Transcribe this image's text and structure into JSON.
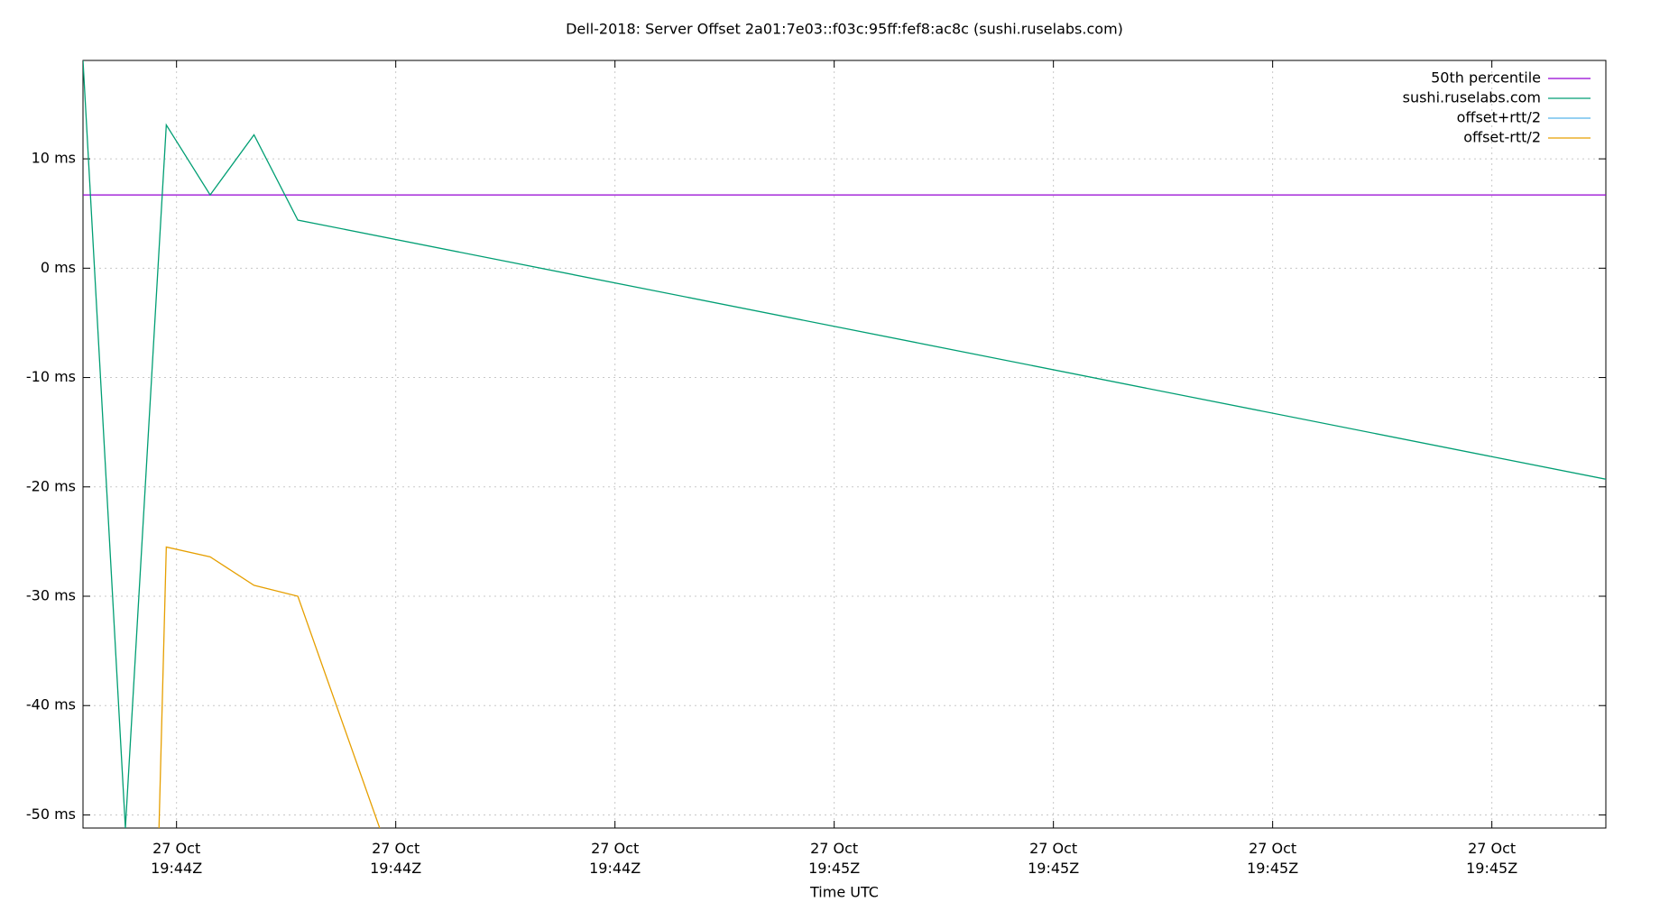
{
  "chart_data": {
    "type": "line",
    "title": "Dell-2018: Server Offset 2a01:7e03::f03c:95ff:fef8:ac8c (sushi.ruselabs.com)",
    "xlabel": "Time UTC",
    "xlim": [
      71048.6,
      71152.8
    ],
    "ylim": [
      -51.2,
      19.0
    ],
    "xticks": [
      {
        "value": 71055,
        "label": "27 Oct\n19:44Z"
      },
      {
        "value": 71070,
        "label": "27 Oct\n19:44Z"
      },
      {
        "value": 71085,
        "label": "27 Oct\n19:44Z"
      },
      {
        "value": 71100,
        "label": "27 Oct\n19:45Z"
      },
      {
        "value": 71115,
        "label": "27 Oct\n19:45Z"
      },
      {
        "value": 71130,
        "label": "27 Oct\n19:45Z"
      },
      {
        "value": 71145,
        "label": "27 Oct\n19:45Z"
      }
    ],
    "yticks": [
      {
        "value": -50,
        "label": "-50 ms"
      },
      {
        "value": -40,
        "label": "-40 ms"
      },
      {
        "value": -30,
        "label": "-30 ms"
      },
      {
        "value": -20,
        "label": "-20 ms"
      },
      {
        "value": -10,
        "label": "-10 ms"
      },
      {
        "value": 0,
        "label": "0 ms"
      },
      {
        "value": 10,
        "label": "10 ms"
      }
    ],
    "grid": true,
    "legend": "top-right",
    "series": [
      {
        "name": "50th percentile",
        "color": "#9400d3",
        "x": [
          71048.6,
          71152.8
        ],
        "values": [
          6.7,
          6.7
        ]
      },
      {
        "name": "sushi.ruselabs.com",
        "color": "#009e73",
        "x": [
          71048.6,
          71051.5,
          71054.3,
          71057.3,
          71060.3,
          71063.3,
          71152.8
        ],
        "values": [
          19.0,
          -51.2,
          13.1,
          6.7,
          12.2,
          4.4,
          -19.3
        ]
      },
      {
        "name": "offset+rtt/2",
        "color": "#56b4e9",
        "x": [],
        "values": []
      },
      {
        "name": "offset-rtt/2",
        "color": "#e69f00",
        "x": [
          71053.8,
          71054.3,
          71057.3,
          71060.3,
          71063.3,
          71068.9
        ],
        "values": [
          -51.2,
          -25.5,
          -26.4,
          -29.0,
          -30.0,
          -51.2
        ]
      }
    ]
  }
}
